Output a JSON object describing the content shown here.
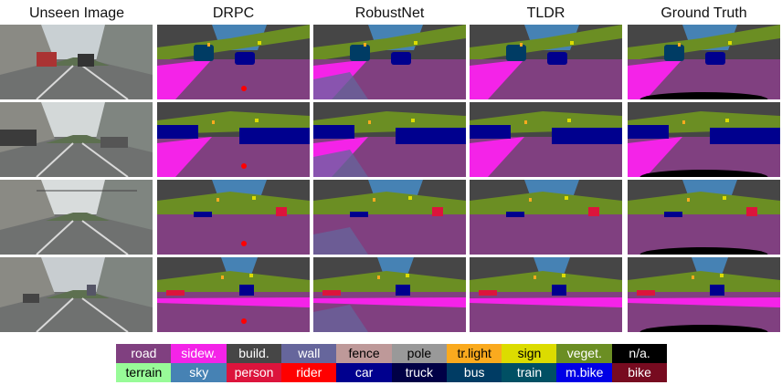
{
  "headers": [
    "Unseen Image",
    "DRPC",
    "RobustNet",
    "TLDR",
    "Ground Truth"
  ],
  "legend": [
    {
      "label": "road",
      "color": "#804080"
    },
    {
      "label": "sidew.",
      "color": "#f423e8"
    },
    {
      "label": "build.",
      "color": "#464646"
    },
    {
      "label": "wall",
      "color": "#66669c"
    },
    {
      "label": "fence",
      "color": "#be9999"
    },
    {
      "label": "pole",
      "color": "#999999"
    },
    {
      "label": "tr.light",
      "color": "#faaa1e"
    },
    {
      "label": "sign",
      "color": "#dcdc00"
    },
    {
      "label": "veget.",
      "color": "#6b8e23"
    },
    {
      "label": "n/a.",
      "color": "#000000"
    },
    {
      "label": "terrain",
      "color": "#98fb98"
    },
    {
      "label": "sky",
      "color": "#4682b4"
    },
    {
      "label": "person",
      "color": "#dc143c"
    },
    {
      "label": "rider",
      "color": "#ff0000"
    },
    {
      "label": "car",
      "color": "#00008e"
    },
    {
      "label": "truck",
      "color": "#000046"
    },
    {
      "label": "bus",
      "color": "#003c64"
    },
    {
      "label": "train",
      "color": "#005064"
    },
    {
      "label": "m.bike",
      "color": "#0000e6"
    },
    {
      "label": "bike",
      "color": "#770b20"
    }
  ]
}
